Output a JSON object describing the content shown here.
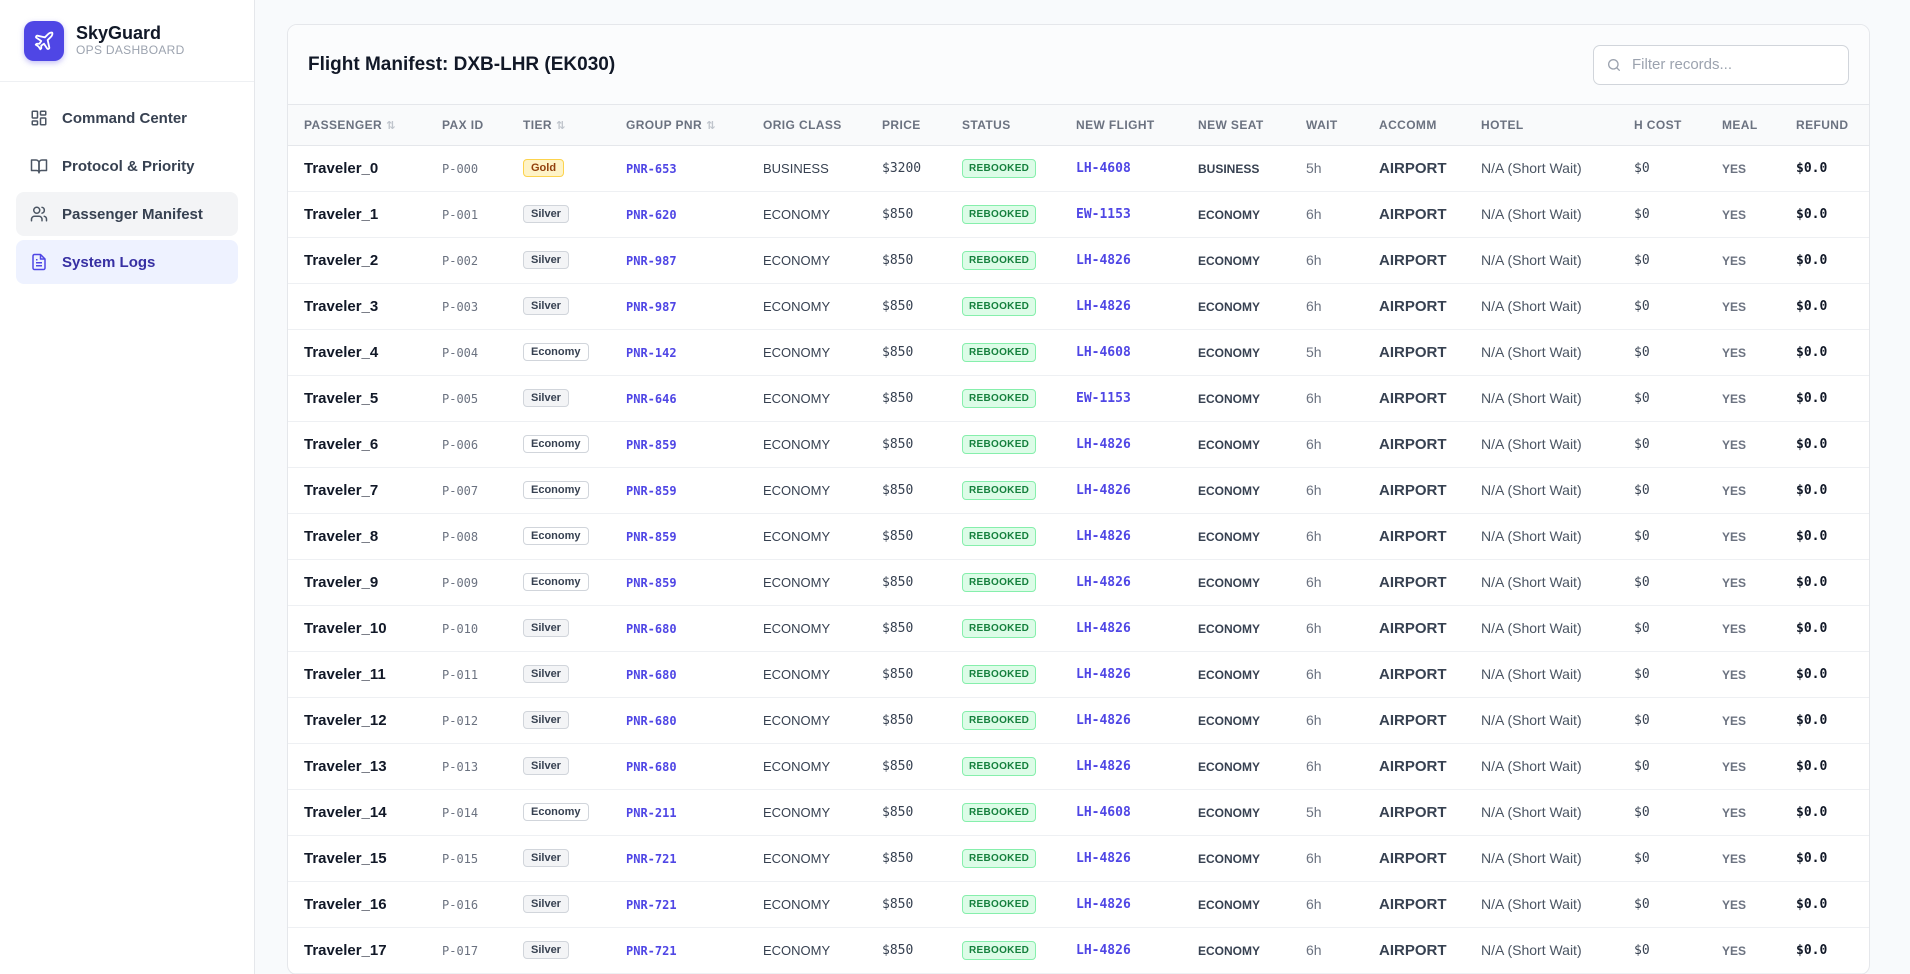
{
  "brand": {
    "name": "SkyGuard",
    "subtitle": "OPS DASHBOARD",
    "accent": "#4f46e5"
  },
  "nav": [
    {
      "label": "Command Center",
      "icon": "dashboard-icon",
      "state": "default"
    },
    {
      "label": "Protocol & Priority",
      "icon": "book-icon",
      "state": "default"
    },
    {
      "label": "Passenger Manifest",
      "icon": "users-icon",
      "state": "hover"
    },
    {
      "label": "System Logs",
      "icon": "document-icon",
      "state": "active"
    }
  ],
  "manifest": {
    "title": "Flight Manifest: DXB-LHR (EK030)",
    "filter_placeholder": "Filter records...",
    "columns": [
      "PASSENGER",
      "PAX ID",
      "TIER",
      "GROUP PNR",
      "ORIG CLASS",
      "PRICE",
      "STATUS",
      "NEW FLIGHT",
      "NEW SEAT",
      "WAIT",
      "ACCOMM",
      "HOTEL",
      "H COST",
      "MEAL",
      "REFUND"
    ],
    "sortable": [
      "PASSENGER",
      "TIER",
      "GROUP PNR"
    ],
    "rows": [
      {
        "name": "Traveler_0",
        "pax": "P-000",
        "tier": "Gold",
        "pnr": "PNR-653",
        "orig": "BUSINESS",
        "price": "$3200",
        "status": "REBOOKED",
        "flight": "LH-4608",
        "seat": "BUSINESS",
        "wait": "5h",
        "accomm": "AIRPORT",
        "hotel": "N/A (Short Wait)",
        "hcost": "$0",
        "meal": "YES",
        "refund": "$0.0"
      },
      {
        "name": "Traveler_1",
        "pax": "P-001",
        "tier": "Silver",
        "pnr": "PNR-620",
        "orig": "ECONOMY",
        "price": "$850",
        "status": "REBOOKED",
        "flight": "EW-1153",
        "seat": "ECONOMY",
        "wait": "6h",
        "accomm": "AIRPORT",
        "hotel": "N/A (Short Wait)",
        "hcost": "$0",
        "meal": "YES",
        "refund": "$0.0"
      },
      {
        "name": "Traveler_2",
        "pax": "P-002",
        "tier": "Silver",
        "pnr": "PNR-987",
        "orig": "ECONOMY",
        "price": "$850",
        "status": "REBOOKED",
        "flight": "LH-4826",
        "seat": "ECONOMY",
        "wait": "6h",
        "accomm": "AIRPORT",
        "hotel": "N/A (Short Wait)",
        "hcost": "$0",
        "meal": "YES",
        "refund": "$0.0"
      },
      {
        "name": "Traveler_3",
        "pax": "P-003",
        "tier": "Silver",
        "pnr": "PNR-987",
        "orig": "ECONOMY",
        "price": "$850",
        "status": "REBOOKED",
        "flight": "LH-4826",
        "seat": "ECONOMY",
        "wait": "6h",
        "accomm": "AIRPORT",
        "hotel": "N/A (Short Wait)",
        "hcost": "$0",
        "meal": "YES",
        "refund": "$0.0"
      },
      {
        "name": "Traveler_4",
        "pax": "P-004",
        "tier": "Economy",
        "pnr": "PNR-142",
        "orig": "ECONOMY",
        "price": "$850",
        "status": "REBOOKED",
        "flight": "LH-4608",
        "seat": "ECONOMY",
        "wait": "5h",
        "accomm": "AIRPORT",
        "hotel": "N/A (Short Wait)",
        "hcost": "$0",
        "meal": "YES",
        "refund": "$0.0"
      },
      {
        "name": "Traveler_5",
        "pax": "P-005",
        "tier": "Silver",
        "pnr": "PNR-646",
        "orig": "ECONOMY",
        "price": "$850",
        "status": "REBOOKED",
        "flight": "EW-1153",
        "seat": "ECONOMY",
        "wait": "6h",
        "accomm": "AIRPORT",
        "hotel": "N/A (Short Wait)",
        "hcost": "$0",
        "meal": "YES",
        "refund": "$0.0"
      },
      {
        "name": "Traveler_6",
        "pax": "P-006",
        "tier": "Economy",
        "pnr": "PNR-859",
        "orig": "ECONOMY",
        "price": "$850",
        "status": "REBOOKED",
        "flight": "LH-4826",
        "seat": "ECONOMY",
        "wait": "6h",
        "accomm": "AIRPORT",
        "hotel": "N/A (Short Wait)",
        "hcost": "$0",
        "meal": "YES",
        "refund": "$0.0"
      },
      {
        "name": "Traveler_7",
        "pax": "P-007",
        "tier": "Economy",
        "pnr": "PNR-859",
        "orig": "ECONOMY",
        "price": "$850",
        "status": "REBOOKED",
        "flight": "LH-4826",
        "seat": "ECONOMY",
        "wait": "6h",
        "accomm": "AIRPORT",
        "hotel": "N/A (Short Wait)",
        "hcost": "$0",
        "meal": "YES",
        "refund": "$0.0"
      },
      {
        "name": "Traveler_8",
        "pax": "P-008",
        "tier": "Economy",
        "pnr": "PNR-859",
        "orig": "ECONOMY",
        "price": "$850",
        "status": "REBOOKED",
        "flight": "LH-4826",
        "seat": "ECONOMY",
        "wait": "6h",
        "accomm": "AIRPORT",
        "hotel": "N/A (Short Wait)",
        "hcost": "$0",
        "meal": "YES",
        "refund": "$0.0"
      },
      {
        "name": "Traveler_9",
        "pax": "P-009",
        "tier": "Economy",
        "pnr": "PNR-859",
        "orig": "ECONOMY",
        "price": "$850",
        "status": "REBOOKED",
        "flight": "LH-4826",
        "seat": "ECONOMY",
        "wait": "6h",
        "accomm": "AIRPORT",
        "hotel": "N/A (Short Wait)",
        "hcost": "$0",
        "meal": "YES",
        "refund": "$0.0"
      },
      {
        "name": "Traveler_10",
        "pax": "P-010",
        "tier": "Silver",
        "pnr": "PNR-680",
        "orig": "ECONOMY",
        "price": "$850",
        "status": "REBOOKED",
        "flight": "LH-4826",
        "seat": "ECONOMY",
        "wait": "6h",
        "accomm": "AIRPORT",
        "hotel": "N/A (Short Wait)",
        "hcost": "$0",
        "meal": "YES",
        "refund": "$0.0"
      },
      {
        "name": "Traveler_11",
        "pax": "P-011",
        "tier": "Silver",
        "pnr": "PNR-680",
        "orig": "ECONOMY",
        "price": "$850",
        "status": "REBOOKED",
        "flight": "LH-4826",
        "seat": "ECONOMY",
        "wait": "6h",
        "accomm": "AIRPORT",
        "hotel": "N/A (Short Wait)",
        "hcost": "$0",
        "meal": "YES",
        "refund": "$0.0"
      },
      {
        "name": "Traveler_12",
        "pax": "P-012",
        "tier": "Silver",
        "pnr": "PNR-680",
        "orig": "ECONOMY",
        "price": "$850",
        "status": "REBOOKED",
        "flight": "LH-4826",
        "seat": "ECONOMY",
        "wait": "6h",
        "accomm": "AIRPORT",
        "hotel": "N/A (Short Wait)",
        "hcost": "$0",
        "meal": "YES",
        "refund": "$0.0"
      },
      {
        "name": "Traveler_13",
        "pax": "P-013",
        "tier": "Silver",
        "pnr": "PNR-680",
        "orig": "ECONOMY",
        "price": "$850",
        "status": "REBOOKED",
        "flight": "LH-4826",
        "seat": "ECONOMY",
        "wait": "6h",
        "accomm": "AIRPORT",
        "hotel": "N/A (Short Wait)",
        "hcost": "$0",
        "meal": "YES",
        "refund": "$0.0"
      },
      {
        "name": "Traveler_14",
        "pax": "P-014",
        "tier": "Economy",
        "pnr": "PNR-211",
        "orig": "ECONOMY",
        "price": "$850",
        "status": "REBOOKED",
        "flight": "LH-4608",
        "seat": "ECONOMY",
        "wait": "5h",
        "accomm": "AIRPORT",
        "hotel": "N/A (Short Wait)",
        "hcost": "$0",
        "meal": "YES",
        "refund": "$0.0"
      },
      {
        "name": "Traveler_15",
        "pax": "P-015",
        "tier": "Silver",
        "pnr": "PNR-721",
        "orig": "ECONOMY",
        "price": "$850",
        "status": "REBOOKED",
        "flight": "LH-4826",
        "seat": "ECONOMY",
        "wait": "6h",
        "accomm": "AIRPORT",
        "hotel": "N/A (Short Wait)",
        "hcost": "$0",
        "meal": "YES",
        "refund": "$0.0"
      },
      {
        "name": "Traveler_16",
        "pax": "P-016",
        "tier": "Silver",
        "pnr": "PNR-721",
        "orig": "ECONOMY",
        "price": "$850",
        "status": "REBOOKED",
        "flight": "LH-4826",
        "seat": "ECONOMY",
        "wait": "6h",
        "accomm": "AIRPORT",
        "hotel": "N/A (Short Wait)",
        "hcost": "$0",
        "meal": "YES",
        "refund": "$0.0"
      },
      {
        "name": "Traveler_17",
        "pax": "P-017",
        "tier": "Silver",
        "pnr": "PNR-721",
        "orig": "ECONOMY",
        "price": "$850",
        "status": "REBOOKED",
        "flight": "LH-4826",
        "seat": "ECONOMY",
        "wait": "6h",
        "accomm": "AIRPORT",
        "hotel": "N/A (Short Wait)",
        "hcost": "$0",
        "meal": "YES",
        "refund": "$0.0"
      }
    ]
  }
}
